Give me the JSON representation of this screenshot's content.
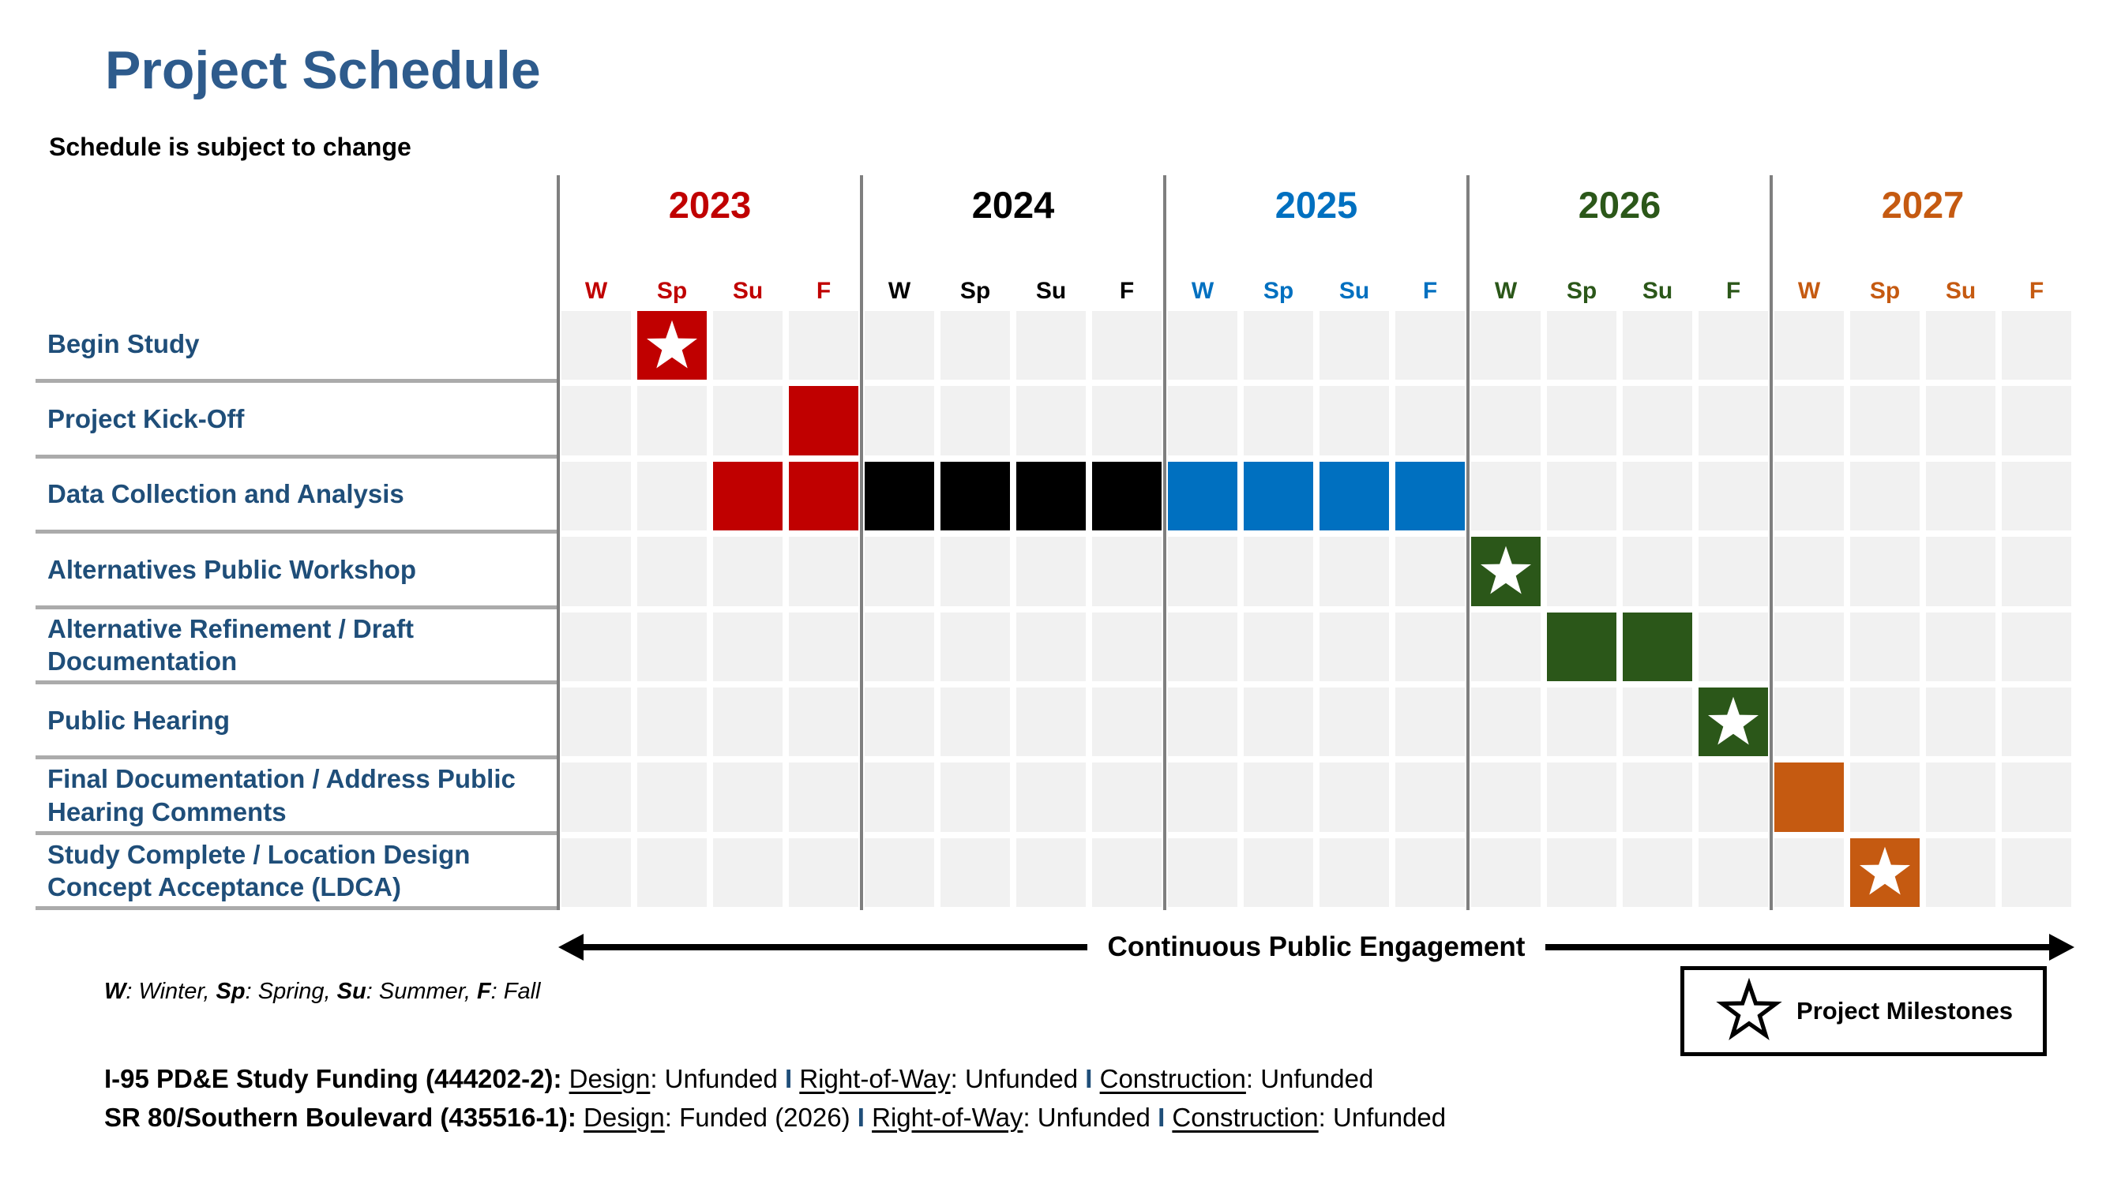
{
  "page": {
    "title": "Project Schedule",
    "subtitle": "Schedule is subject to change"
  },
  "colors": {
    "title_blue": "#2E5B8C",
    "row_label_blue": "#1F4E79",
    "red": "#C00000",
    "black": "#000000",
    "blue": "#0070C0",
    "green": "#2B5719",
    "orange": "#C55A11",
    "cell_base": "#F1F1F1",
    "year_line_gray": "#7F7F7F",
    "row_divider_gray": "#ABABAB",
    "separator_navy": "#1F4E79",
    "milestone_star": "#FFFFFF"
  },
  "chart_data": {
    "type": "gantt",
    "title": "Project Schedule",
    "seasons": [
      "W",
      "Sp",
      "Su",
      "F"
    ],
    "years": [
      {
        "year": "2023",
        "color": "#C00000"
      },
      {
        "year": "2024",
        "color": "#000000"
      },
      {
        "year": "2025",
        "color": "#0070C0"
      },
      {
        "year": "2026",
        "color": "#2B5719"
      },
      {
        "year": "2027",
        "color": "#C55A11"
      }
    ],
    "rows": [
      {
        "label": "Begin Study",
        "cells": [
          {
            "year": "2023",
            "season": "Sp",
            "kind": "milestone",
            "color": "#C00000"
          }
        ]
      },
      {
        "label": "Project Kick-Off",
        "cells": [
          {
            "year": "2023",
            "season": "F",
            "kind": "bar",
            "color": "#C00000"
          }
        ]
      },
      {
        "label": "Data Collection and Analysis",
        "cells": [
          {
            "year": "2023",
            "season": "Su",
            "kind": "bar",
            "color": "#C00000"
          },
          {
            "year": "2023",
            "season": "F",
            "kind": "bar",
            "color": "#C00000"
          },
          {
            "year": "2024",
            "season": "W",
            "kind": "bar",
            "color": "#000000"
          },
          {
            "year": "2024",
            "season": "Sp",
            "kind": "bar",
            "color": "#000000"
          },
          {
            "year": "2024",
            "season": "Su",
            "kind": "bar",
            "color": "#000000"
          },
          {
            "year": "2024",
            "season": "F",
            "kind": "bar",
            "color": "#000000"
          },
          {
            "year": "2025",
            "season": "W",
            "kind": "bar",
            "color": "#0070C0"
          },
          {
            "year": "2025",
            "season": "Sp",
            "kind": "bar",
            "color": "#0070C0"
          },
          {
            "year": "2025",
            "season": "Su",
            "kind": "bar",
            "color": "#0070C0"
          },
          {
            "year": "2025",
            "season": "F",
            "kind": "bar",
            "color": "#0070C0"
          }
        ]
      },
      {
        "label": "Alternatives Public Workshop",
        "cells": [
          {
            "year": "2026",
            "season": "W",
            "kind": "milestone",
            "color": "#2B5719"
          }
        ]
      },
      {
        "label": "Alternative Refinement / Draft Documentation",
        "cells": [
          {
            "year": "2026",
            "season": "Sp",
            "kind": "bar",
            "color": "#2B5719"
          },
          {
            "year": "2026",
            "season": "Su",
            "kind": "bar",
            "color": "#2B5719"
          }
        ]
      },
      {
        "label": "Public Hearing",
        "cells": [
          {
            "year": "2026",
            "season": "F",
            "kind": "milestone",
            "color": "#2B5719"
          }
        ]
      },
      {
        "label": "Final Documentation / Address Public Hearing Comments",
        "cells": [
          {
            "year": "2027",
            "season": "W",
            "kind": "bar",
            "color": "#C55A11"
          }
        ]
      },
      {
        "label": "Study Complete / Location Design Concept Acceptance (LDCA)",
        "cells": [
          {
            "year": "2027",
            "season": "Sp",
            "kind": "milestone",
            "color": "#C55A11"
          }
        ]
      }
    ]
  },
  "engagement_arrow": {
    "label": "Continuous Public Engagement"
  },
  "season_key": {
    "segments": [
      {
        "t": "W",
        "abbr": true
      },
      {
        "t": ": Winter, "
      },
      {
        "t": "Sp",
        "abbr": true
      },
      {
        "t": ": Spring, "
      },
      {
        "t": "Su",
        "abbr": true
      },
      {
        "t": ": Summer, "
      },
      {
        "t": "F",
        "abbr": true
      },
      {
        "t": ": Fall"
      }
    ]
  },
  "legend": {
    "label": "Project Milestones"
  },
  "funding": {
    "lines": [
      [
        {
          "t": "I-95 PD&E Study Funding (444202-2):",
          "b": true
        },
        {
          "t": " "
        },
        {
          "t": "Design",
          "u": true
        },
        {
          "t": ": Unfunded "
        },
        {
          "t": "I",
          "sep": true
        },
        {
          "t": " "
        },
        {
          "t": "Right-of-Way",
          "u": true
        },
        {
          "t": ": Unfunded "
        },
        {
          "t": "I",
          "sep": true
        },
        {
          "t": " "
        },
        {
          "t": "Construction",
          "u": true
        },
        {
          "t": ": Unfunded"
        }
      ],
      [
        {
          "t": "SR 80/Southern Boulevard (435516-1):",
          "b": true
        },
        {
          "t": " "
        },
        {
          "t": "Design",
          "u": true
        },
        {
          "t": ": Funded (2026) "
        },
        {
          "t": "I",
          "sep": true
        },
        {
          "t": " "
        },
        {
          "t": "Right-of-Way",
          "u": true
        },
        {
          "t": ": Unfunded "
        },
        {
          "t": "I",
          "sep": true
        },
        {
          "t": " "
        },
        {
          "t": "Construction",
          "u": true
        },
        {
          "t": ": Unfunded"
        }
      ]
    ]
  }
}
